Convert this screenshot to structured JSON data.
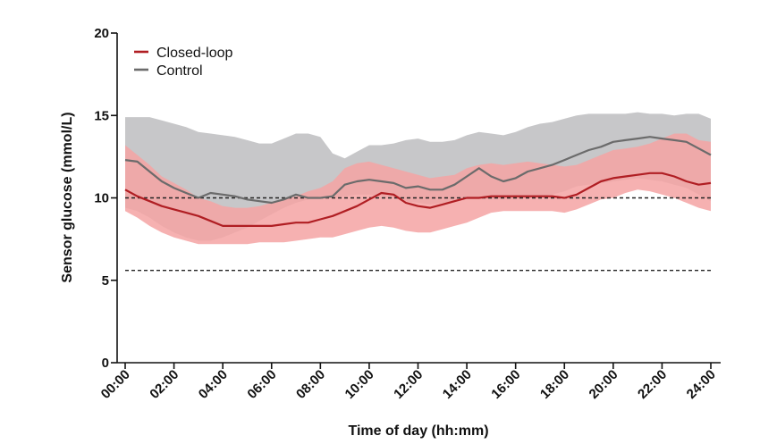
{
  "chart_data": {
    "type": "line",
    "title": "",
    "xlabel": "Time of day (hh:mm)",
    "ylabel": "Sensor glucose (mmol/L)",
    "xlim": [
      0,
      24
    ],
    "ylim": [
      0,
      20
    ],
    "x_tick_labels": [
      "00:00",
      "02:00",
      "04:00",
      "06:00",
      "08:00",
      "10:00",
      "12:00",
      "14:00",
      "16:00",
      "18:00",
      "20:00",
      "22:00",
      "24:00"
    ],
    "y_ticks": [
      0,
      5,
      10,
      15,
      20
    ],
    "grid": false,
    "legend_position": "top-left",
    "reference_lines": [
      10,
      5.6
    ],
    "x": [
      0,
      0.5,
      1,
      1.5,
      2,
      2.5,
      3,
      3.5,
      4,
      4.5,
      5,
      5.5,
      6,
      6.5,
      7,
      7.5,
      8,
      8.5,
      9,
      9.5,
      10,
      10.5,
      11,
      11.5,
      12,
      12.5,
      13,
      13.5,
      14,
      14.5,
      15,
      15.5,
      16,
      16.5,
      17,
      17.5,
      18,
      18.5,
      19,
      19.5,
      20,
      20.5,
      21,
      21.5,
      22,
      22.5,
      23,
      23.5,
      24
    ],
    "series": [
      {
        "name": "Closed-loop",
        "color": "#b01e23",
        "band_color": "#f4a3a3",
        "values": [
          10.5,
          10.1,
          9.8,
          9.5,
          9.3,
          9.1,
          8.9,
          8.6,
          8.3,
          8.3,
          8.3,
          8.3,
          8.3,
          8.4,
          8.5,
          8.5,
          8.7,
          8.9,
          9.2,
          9.5,
          9.9,
          10.3,
          10.2,
          9.7,
          9.5,
          9.4,
          9.6,
          9.8,
          10.0,
          10.0,
          10.1,
          10.1,
          10.1,
          10.1,
          10.1,
          10.1,
          10.0,
          10.2,
          10.6,
          11.0,
          11.2,
          11.3,
          11.4,
          11.5,
          11.5,
          11.3,
          11.0,
          10.8,
          10.9
        ],
        "upper": [
          13.2,
          12.6,
          12.0,
          11.3,
          10.9,
          10.5,
          10.0,
          9.8,
          9.5,
          9.4,
          9.4,
          9.5,
          9.7,
          9.9,
          10.1,
          10.4,
          10.6,
          11.0,
          11.8,
          12.1,
          12.2,
          12.0,
          11.8,
          11.6,
          11.4,
          11.2,
          11.3,
          11.4,
          11.8,
          12.0,
          12.1,
          12.0,
          12.1,
          12.2,
          12.1,
          12.0,
          11.9,
          12.0,
          12.3,
          12.6,
          12.9,
          13.0,
          13.1,
          13.3,
          13.6,
          13.9,
          13.9,
          13.5,
          13.4
        ],
        "lower": [
          9.2,
          8.8,
          8.3,
          7.9,
          7.6,
          7.4,
          7.2,
          7.2,
          7.2,
          7.2,
          7.2,
          7.3,
          7.3,
          7.3,
          7.4,
          7.5,
          7.6,
          7.6,
          7.8,
          8.0,
          8.2,
          8.3,
          8.2,
          8.0,
          7.9,
          7.9,
          8.1,
          8.3,
          8.5,
          8.8,
          9.1,
          9.2,
          9.2,
          9.2,
          9.2,
          9.2,
          9.1,
          9.3,
          9.6,
          9.9,
          10.0,
          10.3,
          10.5,
          10.4,
          10.2,
          10.0,
          9.7,
          9.4,
          9.2
        ]
      },
      {
        "name": "Control",
        "color": "#6b6b6b",
        "band_color": "#c7c7c9",
        "values": [
          12.3,
          12.2,
          11.6,
          11.0,
          10.6,
          10.3,
          10.0,
          10.3,
          10.2,
          10.1,
          9.9,
          9.8,
          9.7,
          9.9,
          10.2,
          10.0,
          10.0,
          10.1,
          10.8,
          11.0,
          11.1,
          11.0,
          10.9,
          10.6,
          10.7,
          10.5,
          10.5,
          10.8,
          11.3,
          11.8,
          11.3,
          11.0,
          11.2,
          11.6,
          11.8,
          12.0,
          12.3,
          12.6,
          12.9,
          13.1,
          13.4,
          13.5,
          13.6,
          13.7,
          13.6,
          13.5,
          13.4,
          13.0,
          12.6
        ],
        "upper": [
          14.9,
          14.9,
          14.9,
          14.7,
          14.5,
          14.3,
          14.0,
          13.9,
          13.8,
          13.7,
          13.5,
          13.3,
          13.3,
          13.6,
          13.9,
          13.9,
          13.7,
          12.7,
          12.4,
          12.8,
          13.2,
          13.2,
          13.3,
          13.5,
          13.6,
          13.4,
          13.4,
          13.5,
          13.8,
          14.0,
          13.9,
          13.8,
          14.0,
          14.3,
          14.5,
          14.6,
          14.8,
          15.0,
          15.1,
          15.1,
          15.1,
          15.1,
          15.2,
          15.1,
          15.1,
          15.0,
          15.1,
          15.1,
          14.8
        ],
        "lower": [
          9.4,
          9.2,
          8.8,
          8.3,
          7.9,
          7.6,
          7.4,
          7.4,
          7.6,
          7.9,
          8.2,
          8.6,
          9.0,
          9.4,
          9.7,
          9.9,
          10.1,
          10.0,
          10.1,
          10.2,
          10.2,
          10.1,
          10.0,
          9.8,
          9.7,
          9.6,
          9.7,
          9.8,
          10.0,
          10.0,
          9.9,
          9.9,
          9.9,
          10.0,
          10.1,
          10.2,
          10.4,
          10.7,
          10.8,
          10.9,
          11.0,
          11.1,
          11.2,
          11.1,
          11.0,
          10.8,
          10.6,
          10.2,
          9.8
        ]
      }
    ]
  }
}
